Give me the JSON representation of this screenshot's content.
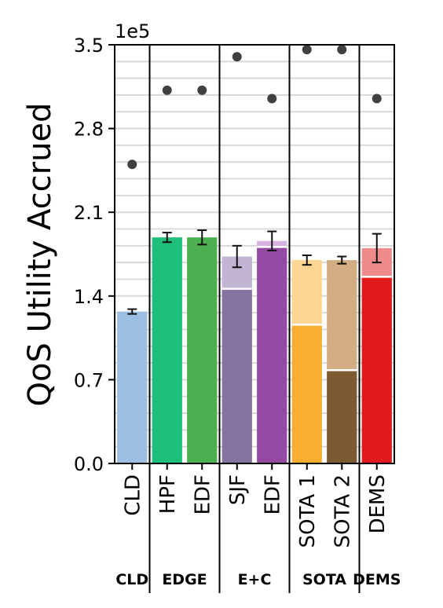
{
  "chart_data": {
    "type": "bar",
    "ylabel": "QoS Utility Accrued",
    "offset_text": "1e5",
    "scale": 100000,
    "ylim": [
      0,
      3.5
    ],
    "yticks": [
      0.0,
      0.7,
      1.4,
      2.1,
      2.8,
      3.5
    ],
    "ytick_labels": [
      "0.0",
      "0.7",
      "1.4",
      "2.1",
      "2.8",
      "3.5"
    ],
    "minor_grid": true,
    "groups": [
      {
        "name": "CLD",
        "bars": [
          {
            "label": "CLD",
            "base": 1.27,
            "total": 1.27,
            "err": 0.02,
            "max": 2.5,
            "base_color": "#9bbfe0",
            "top_color": "#9bbfe0"
          }
        ]
      },
      {
        "name": "EDGE",
        "bars": [
          {
            "label": "HPF",
            "base": 1.89,
            "total": 1.89,
            "err": 0.04,
            "max": 3.12,
            "base_color": "#1dbf7a",
            "top_color": "#1dbf7a"
          },
          {
            "label": "EDF",
            "base": 1.89,
            "total": 1.89,
            "err": 0.06,
            "max": 3.12,
            "base_color": "#4caf50",
            "top_color": "#4caf50"
          }
        ]
      },
      {
        "name": "E+C",
        "bars": [
          {
            "label": "SJF",
            "base": 1.46,
            "total": 1.73,
            "err": 0.09,
            "max": 3.4,
            "base_color": "#85739f",
            "top_color": "#c1b5d3"
          },
          {
            "label": "EDF",
            "base": 1.81,
            "total": 1.86,
            "err": 0.08,
            "max": 3.05,
            "base_color": "#944aa3",
            "top_color": "#d6b2e0"
          }
        ]
      },
      {
        "name": "SOTA",
        "bars": [
          {
            "label": "SOTA 1",
            "base": 1.16,
            "total": 1.7,
            "err": 0.04,
            "max": 3.46,
            "base_color": "#f8ae33",
            "top_color": "#fdd694"
          },
          {
            "label": "SOTA 2",
            "base": 0.78,
            "total": 1.7,
            "err": 0.03,
            "max": 3.46,
            "base_color": "#7d5a32",
            "top_color": "#d3ae84"
          }
        ]
      },
      {
        "name": "DEMS",
        "bars": [
          {
            "label": "DEMS",
            "base": 1.56,
            "total": 1.8,
            "err": 0.12,
            "max": 3.05,
            "base_color": "#e31a1c",
            "top_color": "#f08a8b"
          }
        ]
      }
    ]
  }
}
